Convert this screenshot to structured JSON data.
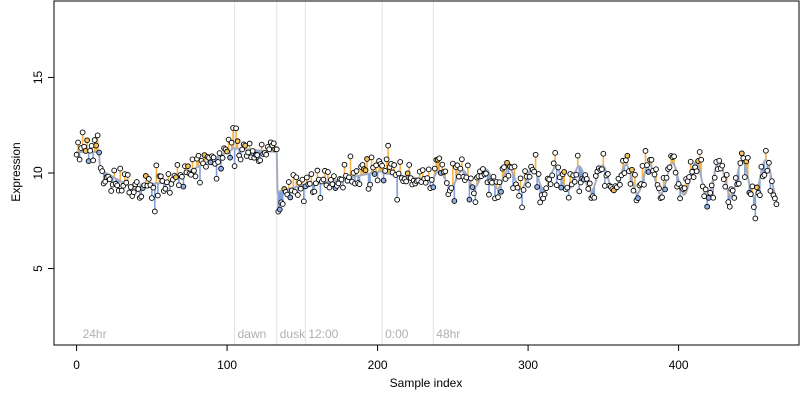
{
  "chart_data": {
    "type": "line",
    "title": "",
    "xlabel": "Sample index",
    "ylabel": "Expression",
    "xlim": [
      -15,
      480
    ],
    "ylim": [
      1,
      19
    ],
    "x_ticks": [
      0,
      100,
      200,
      300,
      400
    ],
    "y_ticks": [
      5,
      10,
      15
    ],
    "grid": false,
    "legend": "none",
    "annotations": [
      {
        "x": 2,
        "text": "24hr",
        "show_line": false
      },
      {
        "x": 105,
        "text": "dawn",
        "show_line": true
      },
      {
        "x": 133,
        "text": "dusk",
        "show_line": true
      },
      {
        "x": 152,
        "text": "12:00",
        "show_line": true
      },
      {
        "x": 203,
        "text": "0:00",
        "show_line": true
      },
      {
        "x": 237,
        "text": "48hr",
        "show_line": true
      }
    ],
    "fitted_curve": {
      "segments": [
        {
          "x0": 0,
          "x1": 15,
          "kind": "flat",
          "v0": 11.1
        },
        {
          "x0": 15,
          "x1": 42,
          "kind": "linear",
          "v0": 10.2,
          "v1": 9.0
        },
        {
          "x0": 42,
          "x1": 62,
          "kind": "linear",
          "v0": 9.4,
          "v1": 9.5
        },
        {
          "x0": 62,
          "x1": 103,
          "kind": "linear",
          "v0": 9.6,
          "v1": 11.2
        },
        {
          "x0": 103,
          "x1": 133,
          "kind": "linear",
          "v0": 11.3,
          "v1": 11.1
        },
        {
          "x0": 133,
          "x1": 152,
          "kind": "linear",
          "v0": 9.0,
          "v1": 9.4
        },
        {
          "x0": 152,
          "x1": 203,
          "kind": "linear",
          "v0": 9.3,
          "v1": 10.1
        },
        {
          "x0": 203,
          "x1": 237,
          "kind": "linear",
          "v0": 10.0,
          "v1": 9.6
        },
        {
          "x0": 237,
          "x1": 465,
          "kind": "oscillation",
          "mean": 9.7,
          "amp_start": 0.4,
          "amp_end": 1.0,
          "period": 15.5
        }
      ]
    },
    "points_summary": {
      "count": 466,
      "x_range": [
        0,
        465
      ],
      "noise": 0.45,
      "above_fill": "#f5a623",
      "below_fill": "#6b8ed6"
    },
    "colors": {
      "curve": "#a3adbf",
      "above_fill": "#f5a623",
      "below_fill": "#6b8ed6",
      "point_fill": "#ffffff",
      "point_highlight_above": "#f5c45a",
      "point_highlight_below": "#8fb0e8",
      "annotation_line": "#e2e2e2",
      "annotation_text": "#b0b0b0"
    }
  }
}
